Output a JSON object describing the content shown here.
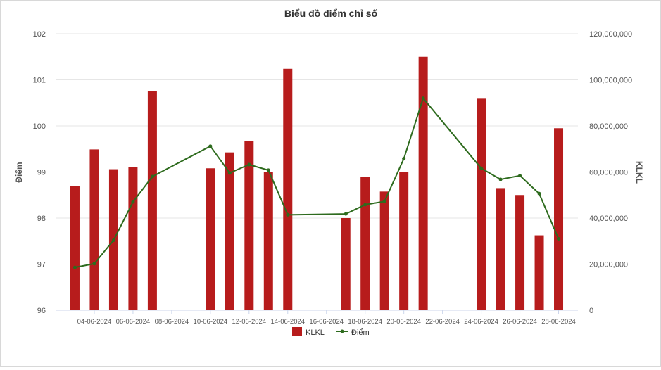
{
  "chart_data": {
    "type": "bar+line",
    "title": "Biểu đồ điểm chỉ số",
    "dates": [
      "03-06-2024",
      "04-06-2024",
      "05-06-2024",
      "06-06-2024",
      "07-06-2024",
      "10-06-2024",
      "11-06-2024",
      "12-06-2024",
      "13-06-2024",
      "14-06-2024",
      "17-06-2024",
      "18-06-2024",
      "19-06-2024",
      "20-06-2024",
      "21-06-2024",
      "24-06-2024",
      "25-06-2024",
      "26-06-2024",
      "27-06-2024",
      "28-06-2024"
    ],
    "x_ticks": [
      "04-06-2024",
      "06-06-2024",
      "08-06-2024",
      "10-06-2024",
      "12-06-2024",
      "14-06-2024",
      "16-06-2024",
      "18-06-2024",
      "20-06-2024",
      "22-06-2024",
      "24-06-2024",
      "26-06-2024",
      "28-06-2024"
    ],
    "x_range": [
      "02-06-2024",
      "29-06-2024"
    ],
    "y_left": {
      "label": "Điểm",
      "min": 96,
      "max": 102,
      "ticks": [
        "96",
        "97",
        "98",
        "99",
        "100",
        "101",
        "102"
      ]
    },
    "y_right": {
      "label": "KLKL",
      "min": 0,
      "max": 120000000,
      "ticks": [
        "0",
        "20,000,000",
        "40,000,000",
        "60,000,000",
        "80,000,000",
        "100,000,000",
        "120,000,000"
      ]
    },
    "series": [
      {
        "name": "KLKL",
        "type": "bar",
        "axis": "right",
        "color": "#b71c1c",
        "values": [
          54000000,
          69800000,
          61200000,
          62000000,
          95200000,
          61600000,
          68500000,
          73300000,
          60000000,
          104800000,
          40000000,
          58000000,
          51500000,
          60000000,
          110000000,
          91800000,
          53000000,
          50000000,
          32500000,
          79000000
        ]
      },
      {
        "name": "Điểm",
        "type": "line",
        "axis": "left",
        "color": "#2e6b1e",
        "values": [
          96.93,
          97.01,
          97.52,
          98.35,
          98.9,
          99.56,
          98.98,
          99.16,
          99.04,
          98.07,
          98.09,
          98.29,
          98.36,
          99.29,
          100.6,
          99.08,
          98.84,
          98.92,
          98.53,
          97.55
        ]
      }
    ],
    "grid": true,
    "legend": "bottom-center"
  }
}
